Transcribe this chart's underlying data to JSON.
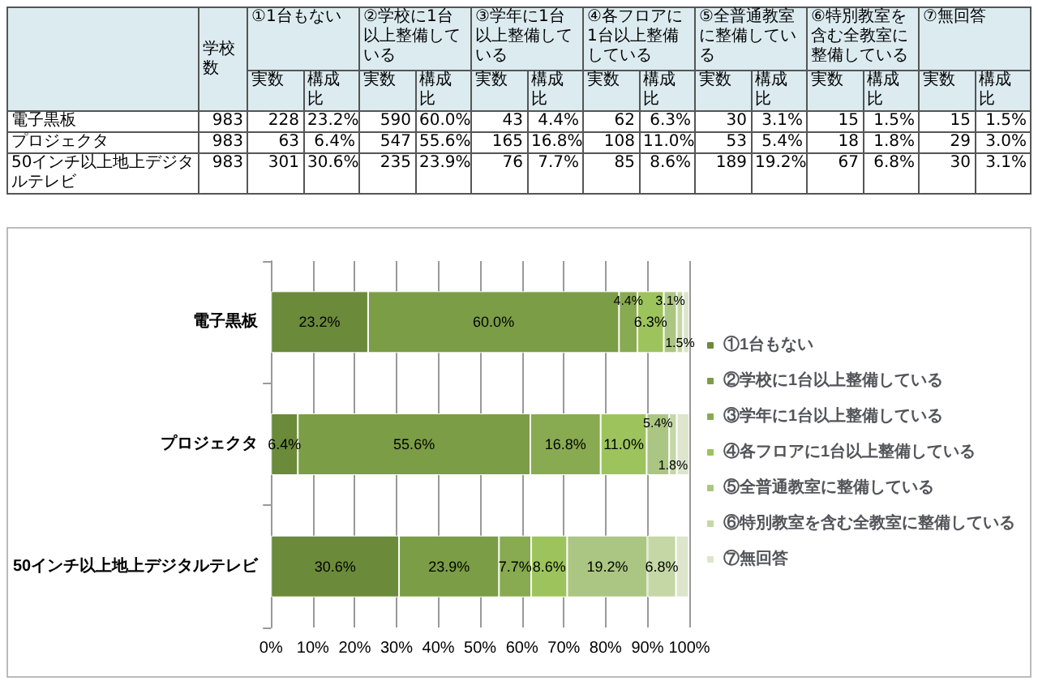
{
  "chart_data": [
    {
      "type": "other",
      "annotations": [
        "学校数",
        "①1台もない",
        "②学校に1台以上整備している",
        "③学年に1台以上整備している",
        "④各フロアに1台以上整備している",
        "⑤全普通教室に整備している",
        "⑥特別教室を含む全教室に整備している",
        "⑦無回答",
        "実数",
        "構成比",
        "実数",
        "構成比",
        "実数",
        "構成比",
        "実数",
        "構成比",
        "実数",
        "構成比",
        "実数",
        "構成比",
        "実数",
        "構成比",
        "電子黒板",
        "983",
        "228",
        "23.2%",
        "590",
        "60.0%",
        "43",
        "4.4%",
        "62",
        "6.3%",
        "30",
        "3.1%",
        "15",
        "1.5%",
        "15",
        "1.5%",
        "プロジェクタ",
        "983",
        "63",
        "6.4%",
        "547",
        "55.6%",
        "165",
        "16.8%",
        "108",
        "11.0%",
        "53",
        "5.4%",
        "18",
        "1.8%",
        "29",
        "3.0%",
        "50インチ以上地上デジタルテレビ",
        "983",
        "301",
        "30.6%",
        "235",
        "23.9%",
        "76",
        "7.7%",
        "85",
        "8.6%",
        "189",
        "19.2%",
        "67",
        "6.8%",
        "30",
        "3.1%"
      ]
    },
    {
      "type": "bar",
      "orientation": "horizontal",
      "stacked": true,
      "legend": "right",
      "grid": "x",
      "categories": [
        "電子黒板",
        "プロジェクタ",
        "50インチ以上地上デジタルテレビ"
      ],
      "xlim": [
        0,
        100
      ],
      "xticks": [
        {
          "value": 0,
          "label": "0%"
        },
        {
          "value": 10,
          "label": "10%"
        },
        {
          "value": 20,
          "label": "20%"
        },
        {
          "value": 30,
          "label": "30%"
        },
        {
          "value": 40,
          "label": "40%"
        },
        {
          "value": 50,
          "label": "50%"
        },
        {
          "value": 60,
          "label": "60%"
        },
        {
          "value": 70,
          "label": "70%"
        },
        {
          "value": 80,
          "label": "80%"
        },
        {
          "value": 90,
          "label": "90%"
        },
        {
          "value": 100,
          "label": "100%"
        }
      ],
      "series": [
        {
          "name": "①1台もない",
          "color": "#6b8a3a",
          "values": [
            23.2,
            6.4,
            30.6
          ],
          "value_labels": [
            "23.2%",
            "6.4%",
            "30.6%"
          ]
        },
        {
          "name": "②学校に1台以上整備している",
          "color": "#7b9d45",
          "values": [
            60.0,
            55.6,
            23.9
          ],
          "value_labels": [
            "60.0%",
            "55.6%",
            "23.9%"
          ]
        },
        {
          "name": "③学年に1台以上整備している",
          "color": "#88aa50",
          "values": [
            4.4,
            16.8,
            7.7
          ],
          "value_labels": [
            "4.4%",
            "16.8%",
            "7.7%"
          ]
        },
        {
          "name": "④各フロアに1台以上整備している",
          "color": "#9dc45c",
          "values": [
            6.3,
            11.0,
            8.6
          ],
          "value_labels": [
            "6.3%",
            "11.0%",
            "8.6%"
          ]
        },
        {
          "name": "⑤全普通教室に整備している",
          "color": "#abc682",
          "values": [
            3.1,
            5.4,
            19.2
          ],
          "value_labels": [
            "3.1%",
            "5.4%",
            "19.2%"
          ]
        },
        {
          "name": "⑥特別教室を含む全教室に整備している",
          "color": "#c4d7a5",
          "values": [
            1.5,
            1.8,
            6.8
          ],
          "value_labels": [
            "1.5%",
            "1.8%",
            "6.8%"
          ]
        },
        {
          "name": "⑦無回答",
          "color": "#dde6cd",
          "values": [
            1.5,
            3.0,
            3.1
          ],
          "value_labels": [
            null,
            null,
            null
          ]
        }
      ]
    }
  ]
}
